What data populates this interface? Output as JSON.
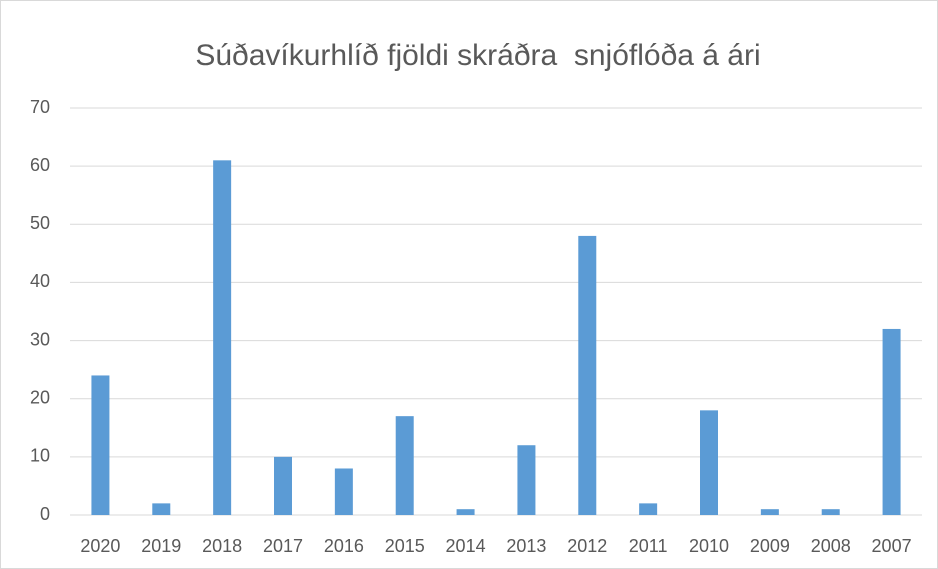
{
  "chart_data": {
    "type": "bar",
    "title": "Súðavíkurhlíð fjöldi skráðra  snjóflóða á ári",
    "categories": [
      "2020",
      "2019",
      "2018",
      "2017",
      "2016",
      "2015",
      "2014",
      "2013",
      "2012",
      "2011",
      "2010",
      "2009",
      "2008",
      "2007"
    ],
    "values": [
      24,
      2,
      61,
      10,
      8,
      17,
      1,
      12,
      48,
      2,
      18,
      1,
      1,
      32
    ],
    "color": "#5b9bd5",
    "ylim": [
      0,
      70
    ],
    "yticks": [
      0,
      10,
      20,
      30,
      40,
      50,
      60,
      70
    ],
    "grid": true
  }
}
